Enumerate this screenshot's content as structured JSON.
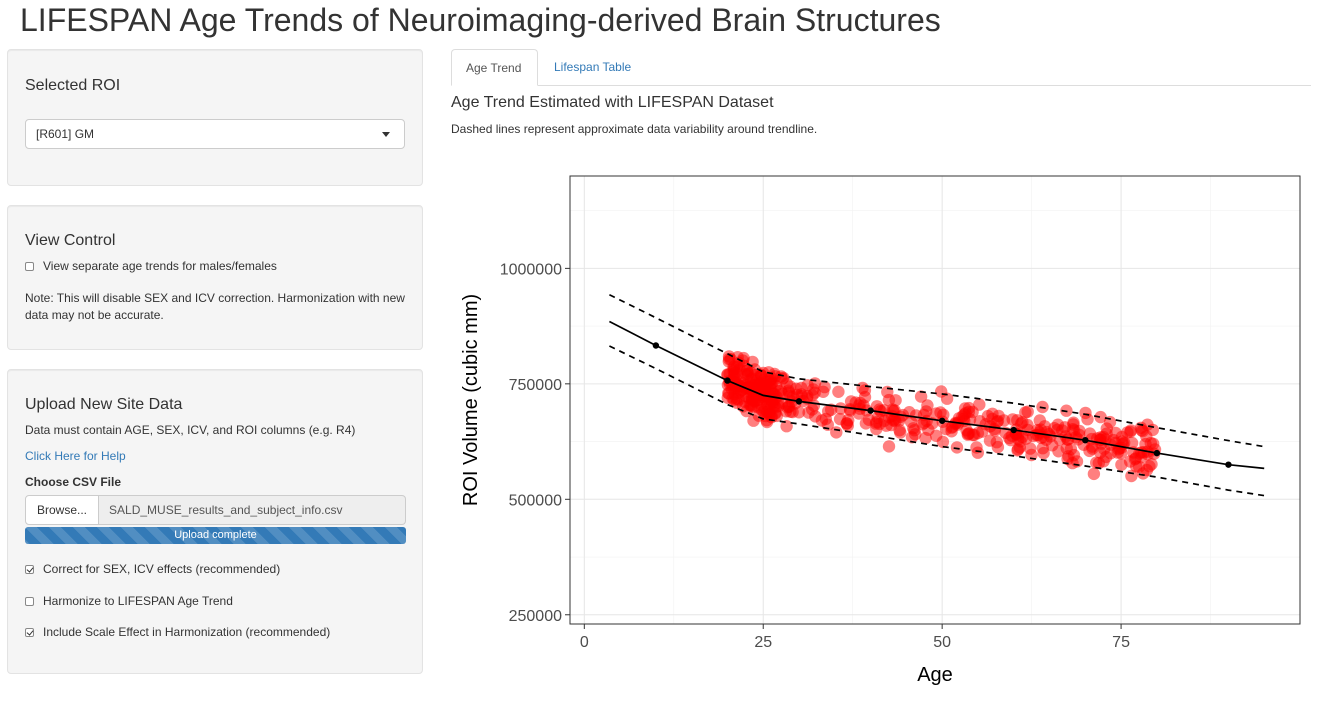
{
  "page": {
    "title": "LIFESPAN Age Trends of Neuroimaging-derived Brain Structures"
  },
  "roi_panel": {
    "heading": "Selected ROI",
    "selected_value": "[R601] GM"
  },
  "view_control": {
    "heading": "View Control",
    "separate_trends_label": "View separate age trends for males/females",
    "separate_trends_checked": false,
    "note": "Note: This will disable SEX and ICV correction. Harmonization with new data may not be accurate."
  },
  "upload": {
    "heading": "Upload New Site Data",
    "requirement": "Data must contain AGE, SEX, ICV, and ROI columns (e.g. R4)",
    "help_link": "Click Here for Help",
    "file_label": "Choose CSV File",
    "browse_label": "Browse...",
    "file_name": "SALD_MUSE_results_and_subject_info.csv",
    "progress_text": "Upload complete",
    "progress_fraction": 1.0,
    "options": [
      {
        "label": "Correct for SEX, ICV effects (recommended)",
        "checked": true
      },
      {
        "label": "Harmonize to LIFESPAN Age Trend",
        "checked": false
      },
      {
        "label": "Include Scale Effect in Harmonization (recommended)",
        "checked": true
      }
    ]
  },
  "tabs": [
    {
      "label": "Age Trend",
      "active": true
    },
    {
      "label": "Lifespan Table",
      "active": false
    }
  ],
  "plot_header": {
    "title": "Age Trend Estimated with LIFESPAN Dataset",
    "subtitle": "Dashed lines represent approximate data variability around trendline."
  },
  "colors": {
    "accent": "#337ab7",
    "points": "#ff0000"
  },
  "chart_data": {
    "type": "scatter",
    "xlabel": "Age",
    "ylabel": "ROI Volume (cubic mm)",
    "xlim": [
      -2,
      100
    ],
    "ylim": [
      230000,
      1200000
    ],
    "xticks": [
      "0",
      "25",
      "50",
      "75"
    ],
    "yticks": [
      "250000",
      "500000",
      "750000",
      "1000000"
    ],
    "grid": true,
    "trend": {
      "x": [
        3.5,
        10,
        20,
        25,
        30,
        40,
        50,
        60,
        70,
        80,
        90,
        95
      ],
      "y": [
        885000,
        833000,
        757000,
        725000,
        712000,
        692000,
        670000,
        650000,
        628000,
        600000,
        575000,
        567000
      ]
    },
    "trend_markers_x": [
      10,
      20,
      30,
      40,
      50,
      60,
      70,
      80,
      90
    ],
    "upper": {
      "x": [
        3.5,
        10,
        20,
        25,
        30,
        40,
        50,
        60,
        70,
        80,
        90,
        95
      ],
      "y": [
        943000,
        893000,
        815000,
        776000,
        761000,
        744000,
        728000,
        708000,
        684000,
        655000,
        627000,
        614000
      ]
    },
    "lower": {
      "x": [
        3.5,
        10,
        20,
        25,
        30,
        40,
        50,
        60,
        70,
        80,
        90,
        95
      ],
      "y": [
        832000,
        783000,
        705000,
        674000,
        663000,
        639000,
        614000,
        594000,
        572000,
        548000,
        520000,
        508000
      ]
    },
    "points": {
      "n": 480,
      "age_range": [
        19,
        80
      ],
      "dense_age_range": [
        20,
        27
      ],
      "spread": 28000
    }
  }
}
